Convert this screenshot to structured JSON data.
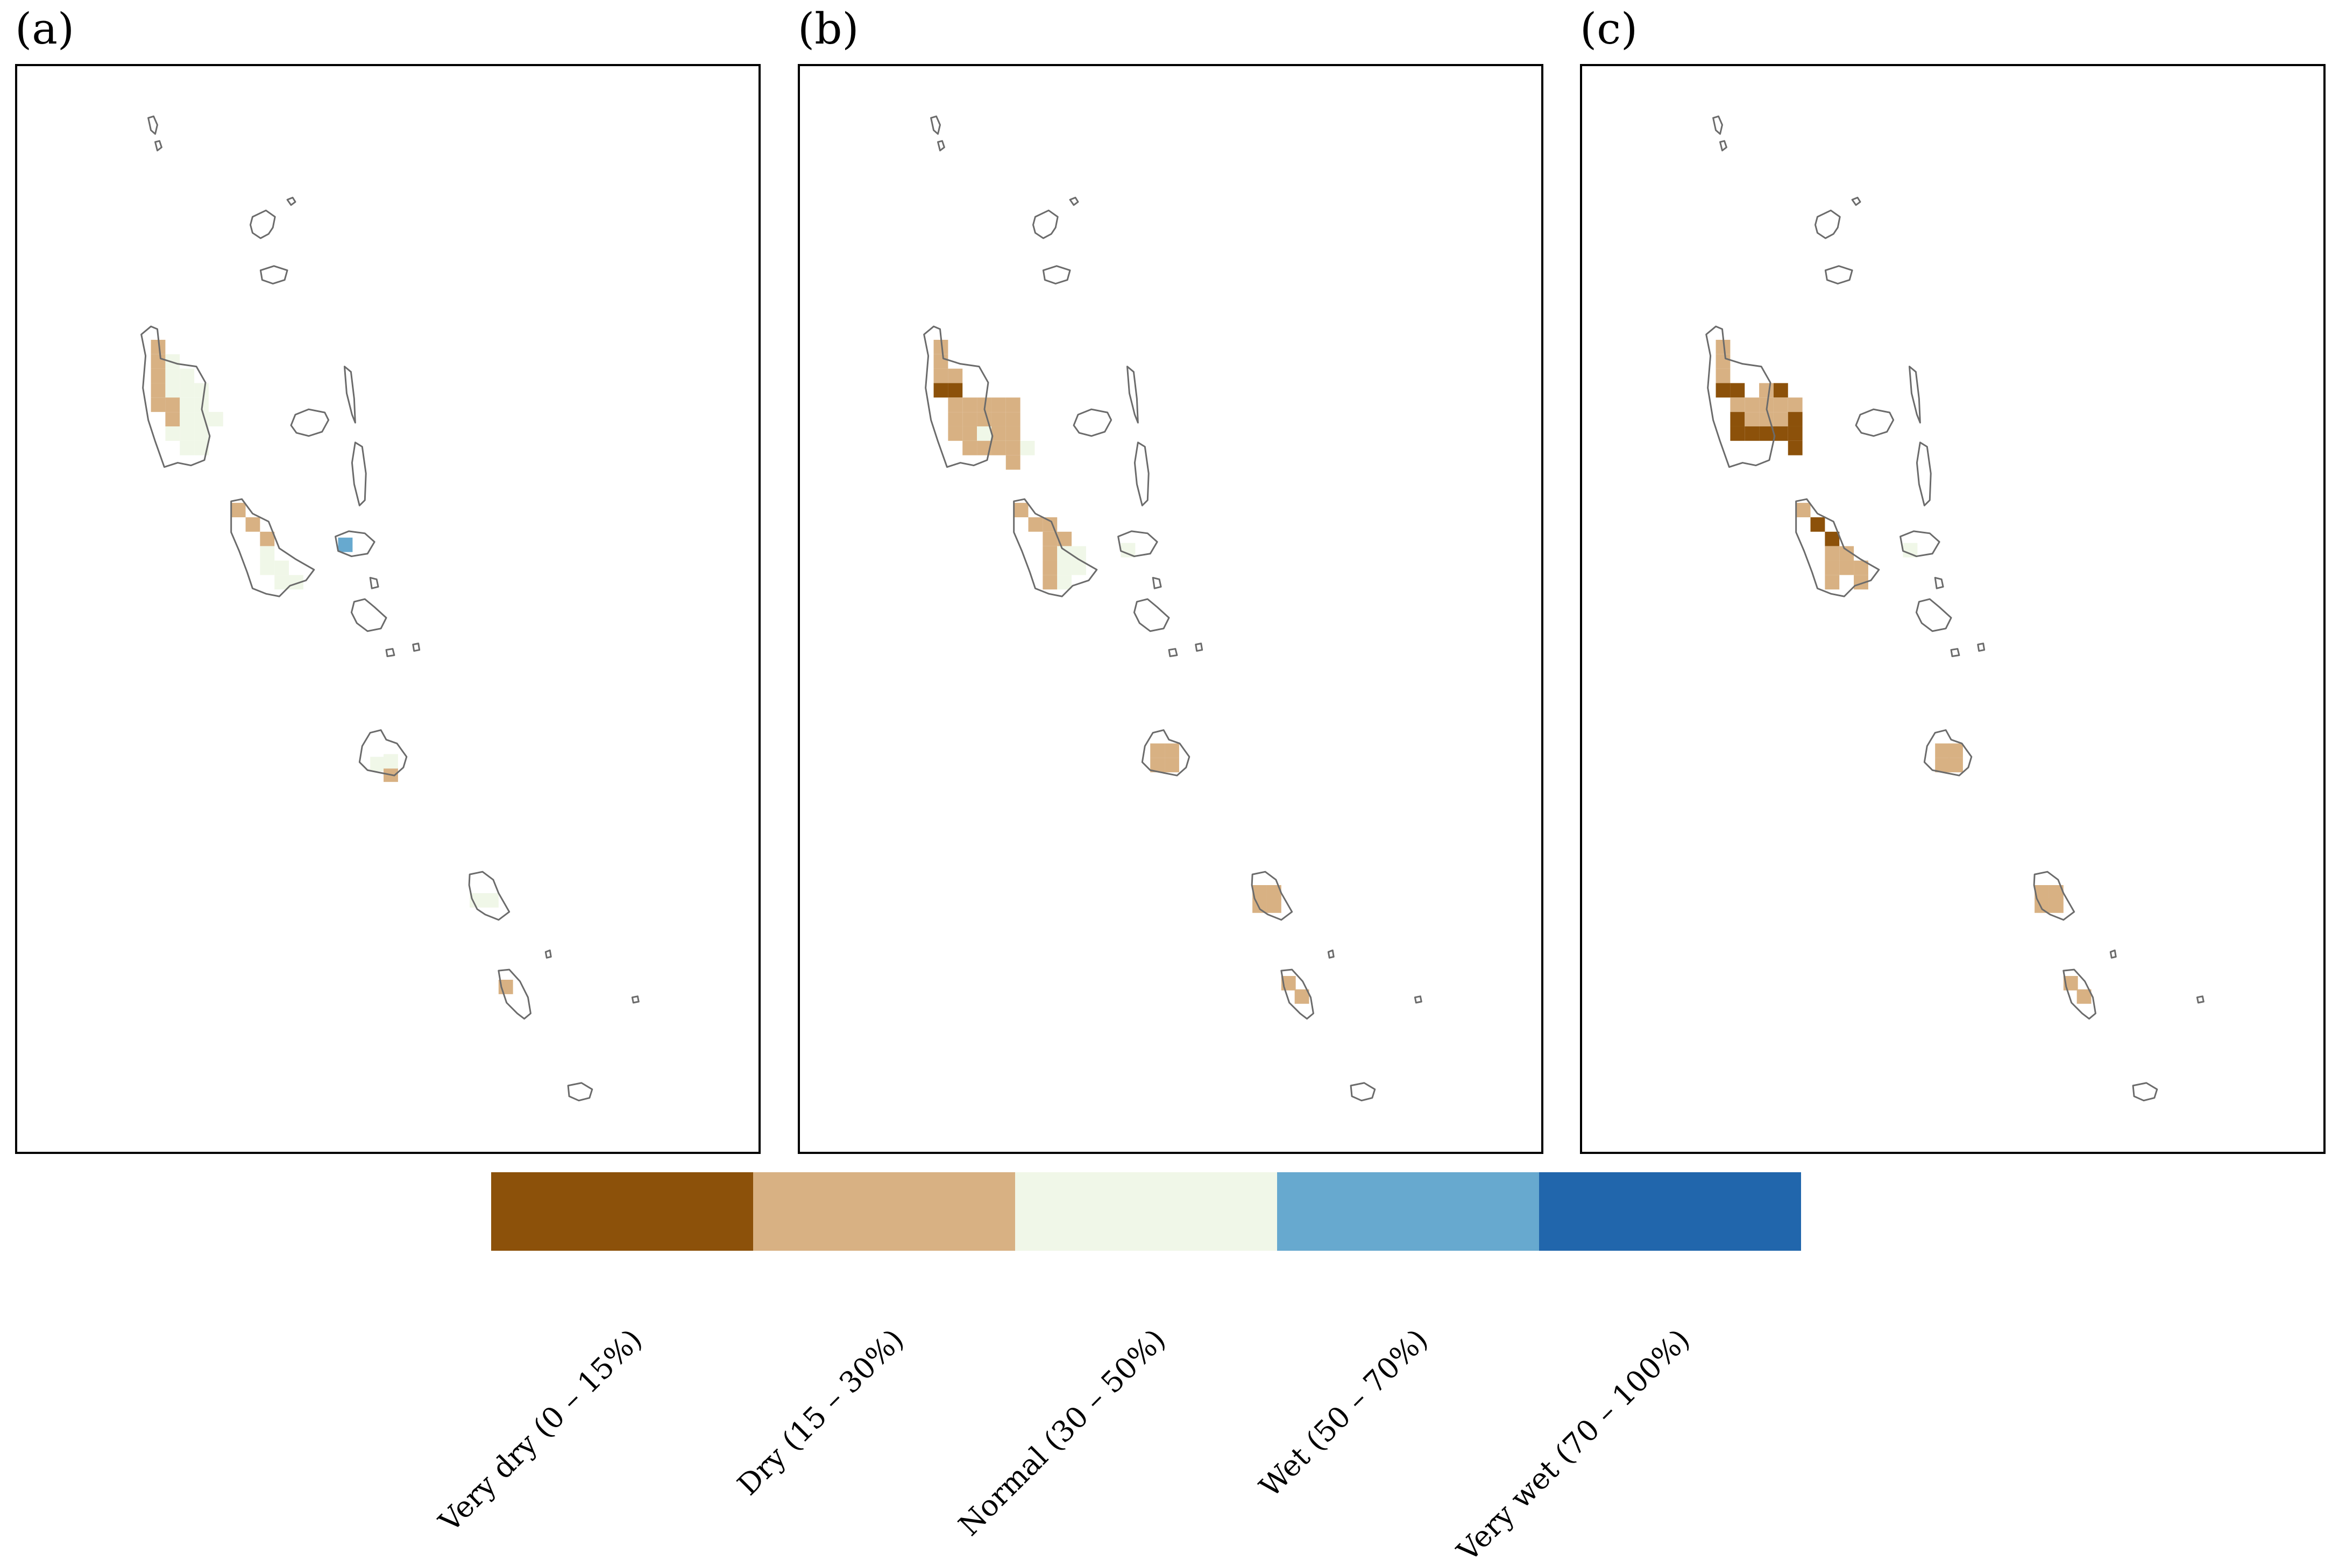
{
  "panels": [
    {
      "label": "(a)"
    },
    {
      "label": "(b)"
    },
    {
      "label": "(c)"
    }
  ],
  "legend": {
    "categories": [
      {
        "label": "Very dry (0 – 15%)",
        "color": "#8c510a"
      },
      {
        "label": "Dry (15 – 30%)",
        "color": "#d8b183"
      },
      {
        "label": "Normal (30 – 50%)",
        "color": "#f0f7e8"
      },
      {
        "label": "Wet (50 – 70%)",
        "color": "#67a9cf"
      },
      {
        "label": "Very wet (70 – 100%)",
        "color": "#2166ac"
      }
    ]
  },
  "colors": {
    "very_dry": "#8c510a",
    "dry": "#d8b183",
    "normal": "#f0f7e8",
    "wet": "#67a9cf",
    "very_wet": "#2166ac",
    "coastline": "#6b6b6b"
  }
}
